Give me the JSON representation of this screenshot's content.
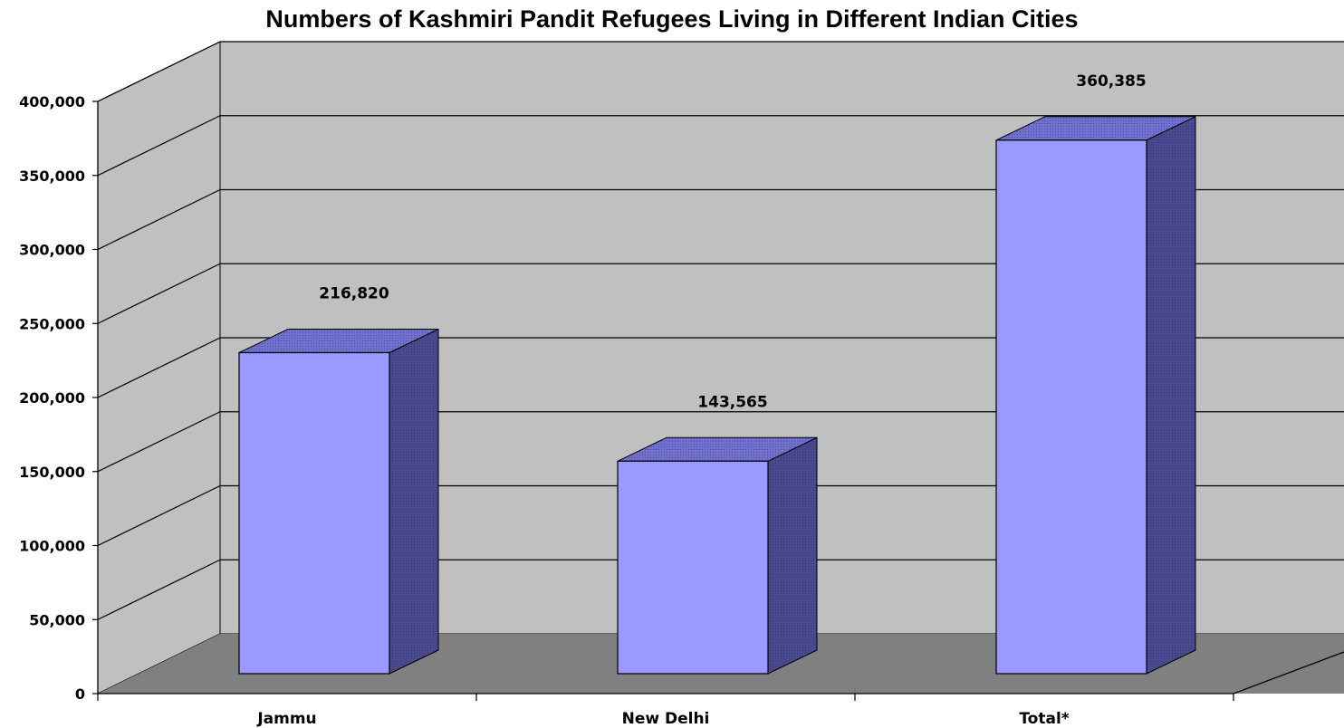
{
  "chart_data": {
    "type": "bar",
    "title": "Numbers of Kashmiri Pandit Refugees Living in Different Indian Cities",
    "xlabel": "",
    "ylabel": "",
    "categories": [
      "Jammu",
      "New Delhi",
      "Total*"
    ],
    "values": [
      216820,
      143565,
      360385
    ],
    "data_labels": [
      "216,820",
      "143,565",
      "360,385"
    ],
    "ylim": [
      0,
      400000
    ],
    "yticks": [
      0,
      50000,
      100000,
      150000,
      200000,
      250000,
      300000,
      350000,
      400000
    ],
    "ytick_labels": [
      "0",
      "50,000",
      "100,000",
      "150,000",
      "200,000",
      "250,000",
      "300,000",
      "350,000",
      "400,000"
    ],
    "grid": true,
    "legend": "none",
    "style": "3d-column",
    "colors": {
      "bar_front": "#9999ff",
      "bar_top": "#7070d0",
      "bar_side": "#4a4a90",
      "wall": "#c0c0c0",
      "floor": "#808080"
    }
  }
}
